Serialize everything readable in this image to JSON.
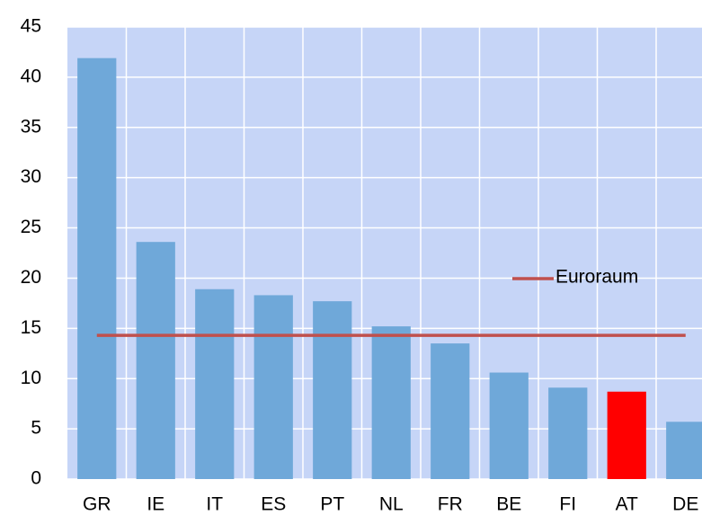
{
  "chart_data": {
    "type": "bar",
    "categories": [
      "GR",
      "IE",
      "IT",
      "ES",
      "PT",
      "NL",
      "FR",
      "BE",
      "FI",
      "AT",
      "DE"
    ],
    "values": [
      41.9,
      23.6,
      18.9,
      18.3,
      17.7,
      15.2,
      13.5,
      10.6,
      9.1,
      8.7,
      5.7
    ],
    "colors": [
      "#6fa8d9",
      "#6fa8d9",
      "#6fa8d9",
      "#6fa8d9",
      "#6fa8d9",
      "#6fa8d9",
      "#6fa8d9",
      "#6fa8d9",
      "#6fa8d9",
      "#ff0000",
      "#6fa8d9"
    ],
    "series": [
      {
        "name": "Euroraum",
        "type": "line",
        "color": "#c0504d",
        "values": [
          14.3,
          14.3,
          14.3,
          14.3,
          14.3,
          14.3,
          14.3,
          14.3,
          14.3,
          14.3,
          14.3
        ]
      }
    ],
    "ylim": [
      0,
      45
    ],
    "yticks": [
      0,
      5,
      10,
      15,
      20,
      25,
      30,
      35,
      40,
      45
    ],
    "grid": true,
    "plot_background": "#c6d5f7"
  }
}
